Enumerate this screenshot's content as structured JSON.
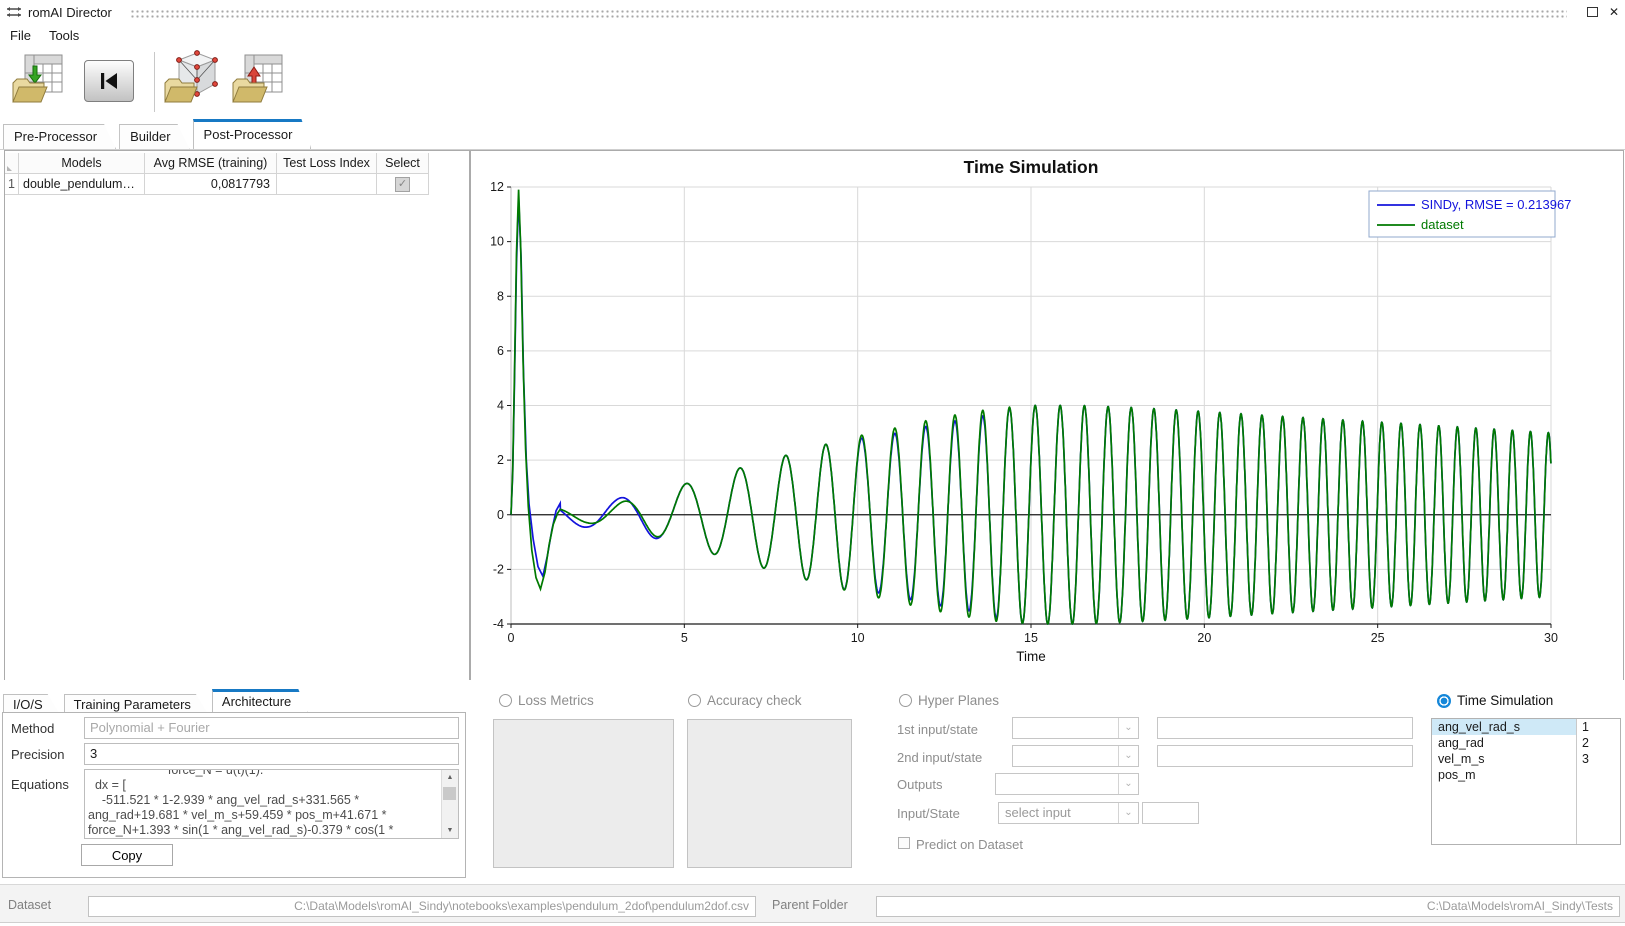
{
  "window": {
    "title": "romAI Director"
  },
  "glyphs": {
    "check": "✓",
    "chevron": "⌄",
    "arrow_up": "▲",
    "arrow_down": "▼",
    "close": "✕"
  },
  "menu": {
    "items": [
      "File",
      "Tools"
    ]
  },
  "tabs": {
    "items": [
      "Pre-Processor",
      "Builder",
      "Post-Processor"
    ],
    "active": "Post-Processor"
  },
  "models_table": {
    "columns": [
      "Models",
      "Avg RMSE (training)",
      "Test Loss Index",
      "Select"
    ],
    "rows": [
      {
        "index": "1",
        "model": "double_pendulum…",
        "avg_rmse": "0,0817793",
        "test_loss_index": "",
        "selected": true
      }
    ]
  },
  "chart_data": {
    "type": "line",
    "title": "Time Simulation",
    "xlabel": "Time",
    "ylabel": "",
    "xlim": [
      0,
      30
    ],
    "ylim": [
      -4,
      12
    ],
    "xticks": [
      0,
      5,
      10,
      15,
      20,
      25,
      30
    ],
    "yticks": [
      -4,
      -2,
      0,
      2,
      4,
      6,
      8,
      10,
      12
    ],
    "grid": true,
    "legend": {
      "position": "top-right",
      "border_color": "#92a8cc"
    },
    "series": [
      {
        "name": "SINDy, RMSE = 0.213967",
        "color": "#1414dc"
      },
      {
        "name": "dataset",
        "color": "#007a00"
      }
    ],
    "signal": {
      "description": "Two nearly-overlapping curves: impulse peak ~11.9 at t~0.2, undershoot ~-2.7 at t~0.85, small oscillation ~±0.3 until t~3, then amplitude-growing chirp reaching ~±4 by t~15, slowly decaying to ~±3 at t=30 while frequency rises from ~0.45 Hz to ~1.94 Hz. SINDy deviates slightly from dataset for 0.4<t<4.5 and has marginally smaller peaks for 10<t<14.",
      "phase0": 2.21,
      "frequency": [
        [
          1.42,
          0.45
        ],
        [
          4,
          0.55
        ],
        [
          6,
          0.65
        ],
        [
          8,
          0.82
        ],
        [
          10,
          1.0
        ],
        [
          12,
          1.16
        ],
        [
          14,
          1.3
        ],
        [
          16,
          1.42
        ],
        [
          18,
          1.52
        ],
        [
          20,
          1.6
        ],
        [
          22,
          1.68
        ],
        [
          24,
          1.76
        ],
        [
          26,
          1.83
        ],
        [
          28,
          1.89
        ],
        [
          30,
          1.94
        ]
      ],
      "envelope": [
        [
          1.42,
          0.25
        ],
        [
          2.2,
          0.3
        ],
        [
          3.0,
          0.42
        ],
        [
          3.6,
          0.58
        ],
        [
          4.2,
          0.8
        ],
        [
          5.0,
          1.12
        ],
        [
          6.0,
          1.5
        ],
        [
          7.0,
          1.85
        ],
        [
          8.0,
          2.2
        ],
        [
          9.0,
          2.55
        ],
        [
          10.0,
          2.88
        ],
        [
          11.0,
          3.15
        ],
        [
          12.0,
          3.45
        ],
        [
          13.0,
          3.7
        ],
        [
          14.0,
          3.9
        ],
        [
          15.0,
          4.0
        ],
        [
          16.5,
          4.0
        ],
        [
          18.0,
          3.92
        ],
        [
          20.0,
          3.78
        ],
        [
          22.0,
          3.62
        ],
        [
          24.0,
          3.47
        ],
        [
          26.0,
          3.32
        ],
        [
          28.0,
          3.16
        ],
        [
          30.0,
          3.0
        ]
      ],
      "dataset_initial": [
        [
          0,
          0
        ],
        [
          0.05,
          1.6
        ],
        [
          0.1,
          5.2
        ],
        [
          0.16,
          9.6
        ],
        [
          0.22,
          11.9
        ],
        [
          0.28,
          9.8
        ],
        [
          0.35,
          5.6
        ],
        [
          0.42,
          2.4
        ],
        [
          0.5,
          0.3
        ],
        [
          0.6,
          -1.3
        ],
        [
          0.72,
          -2.3
        ],
        [
          0.85,
          -2.72
        ],
        [
          0.98,
          -2.1
        ],
        [
          1.1,
          -1.1
        ],
        [
          1.22,
          -0.35
        ],
        [
          1.34,
          0.05
        ],
        [
          1.42,
          0.2
        ]
      ],
      "sindy_initial": [
        [
          0,
          0
        ],
        [
          0.05,
          1.5
        ],
        [
          0.1,
          4.9
        ],
        [
          0.16,
          9.2
        ],
        [
          0.22,
          11.6
        ],
        [
          0.29,
          9.4
        ],
        [
          0.36,
          5.2
        ],
        [
          0.44,
          2.0
        ],
        [
          0.52,
          0.4
        ],
        [
          0.64,
          -0.9
        ],
        [
          0.78,
          -1.9
        ],
        [
          0.92,
          -2.25
        ],
        [
          1.05,
          -1.5
        ],
        [
          1.18,
          -0.55
        ],
        [
          1.3,
          0.15
        ],
        [
          1.42,
          0.42
        ]
      ],
      "sindy_amp_factor": [
        [
          1.42,
          1.6
        ],
        [
          2.5,
          1.5
        ],
        [
          3.5,
          1.25
        ],
        [
          4.6,
          1.0
        ],
        [
          9.5,
          1.0
        ],
        [
          10.5,
          0.94
        ],
        [
          13.5,
          0.94
        ],
        [
          14.5,
          1.0
        ],
        [
          30,
          1.0
        ]
      ],
      "sindy_phase_offset": [
        [
          1.42,
          0.5
        ],
        [
          3.0,
          0.35
        ],
        [
          4.6,
          0.0
        ],
        [
          30,
          0.0
        ]
      ]
    }
  },
  "analysis_tabs": {
    "items": [
      "I/O/S",
      "Training Parameters",
      "Architecture"
    ],
    "active": "Architecture"
  },
  "architecture": {
    "method_label": "Method",
    "method_value": "Polynomial + Fourier",
    "precision_label": "Precision",
    "precision_value": "3",
    "equations_label": "Equations",
    "equations_text": "                       force_N = u(t)(1).\n  dx = [\n    -511.521 * 1-2.939 * ang_vel_rad_s+331.565 *\nang_rad+19.681 * vel_m_s+59.459 * pos_m+41.671 *\nforce_N+1.393 * sin(1 * ang_vel_rad_s)-0.379 * cos(1 *",
    "copy_label": "Copy"
  },
  "sections": {
    "loss_metrics": {
      "label": "Loss Metrics",
      "selected": false
    },
    "accuracy_check": {
      "label": "Accuracy check",
      "selected": false
    },
    "hyper_planes": {
      "label": "Hyper Planes",
      "selected": false,
      "row1_label": "1st input/state",
      "row2_label": "2nd input/state",
      "outputs_label": "Outputs",
      "input_state_label": "Input/State",
      "input_state_value": "select input",
      "predict_label": "Predict on Dataset",
      "predict_checked": false
    },
    "time_simulation": {
      "label": "Time Simulation",
      "selected": true,
      "signals": [
        "ang_vel_rad_s",
        "ang_rad",
        "vel_m_s",
        "pos_m"
      ],
      "selected_signal": "ang_vel_rad_s",
      "indices": [
        "1",
        "2",
        "3"
      ]
    }
  },
  "status_bar": {
    "dataset_label": "Dataset",
    "dataset_path": "C:\\Data\\Models\\romAI_Sindy\\notebooks\\examples\\pendulum_2dof\\pendulum2dof.csv",
    "parent_folder_label": "Parent Folder",
    "parent_folder_path": "C:\\Data\\Models\\romAI_Sindy\\Tests"
  }
}
